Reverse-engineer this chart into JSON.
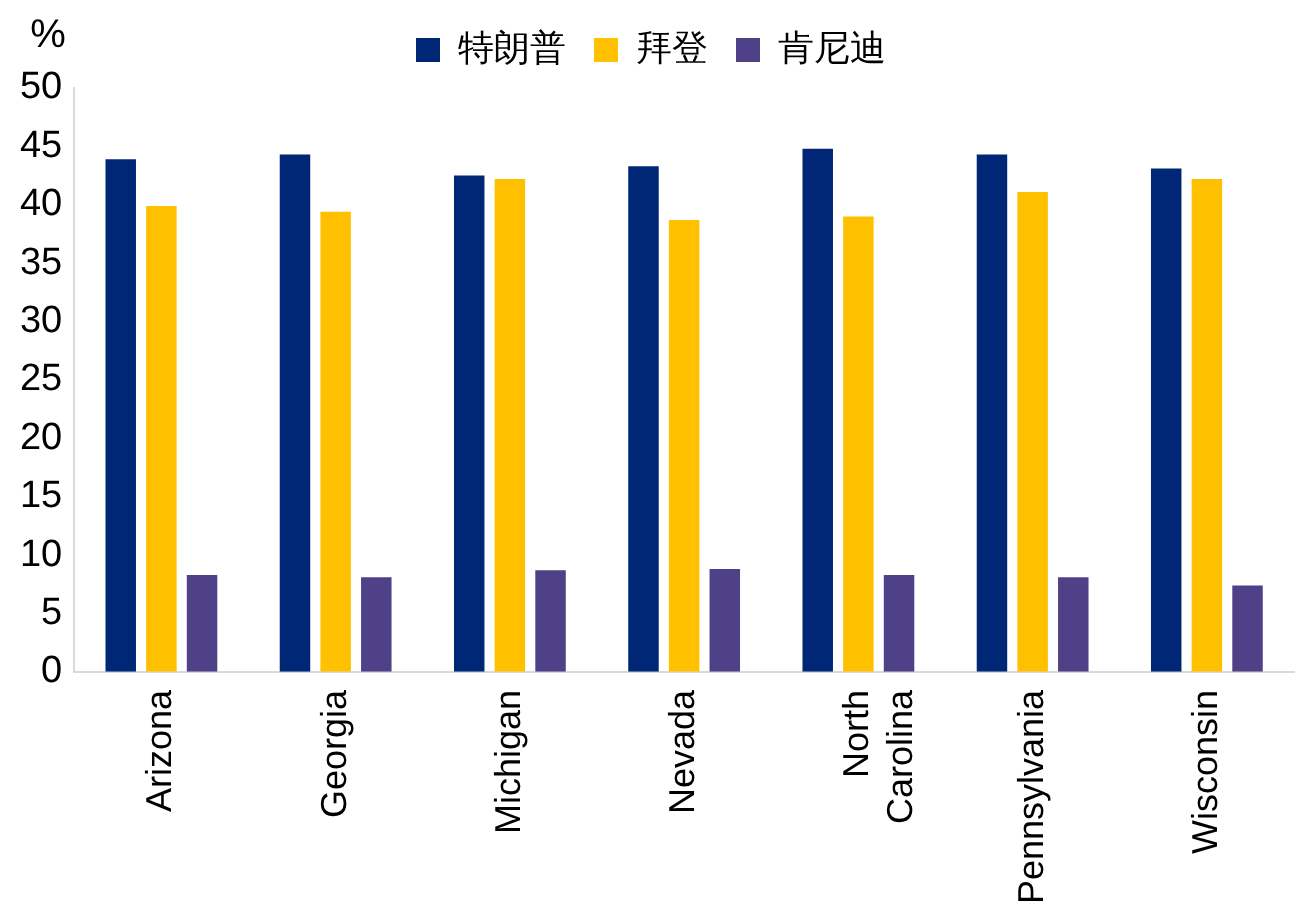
{
  "chart_data": {
    "type": "bar",
    "ylabel": "%",
    "categories": [
      "Arizona",
      "Georgia",
      "Michigan",
      "Nevada",
      "North Carolina",
      "Pennsylvania",
      "Wisconsin"
    ],
    "series": [
      {
        "name": "特朗普",
        "color": "#002776",
        "values": [
          43.9,
          44.3,
          42.5,
          43.3,
          44.8,
          44.3,
          43.1
        ]
      },
      {
        "name": "拜登",
        "color": "#ffc000",
        "values": [
          39.9,
          39.4,
          42.2,
          38.7,
          39.0,
          41.1,
          42.2
        ]
      },
      {
        "name": "肯尼迪",
        "color": "#4f4187",
        "values": [
          8.3,
          8.1,
          8.7,
          8.8,
          8.3,
          8.1,
          7.4
        ]
      }
    ],
    "ylim": [
      0,
      50
    ],
    "yticks": [
      0,
      5,
      10,
      15,
      20,
      25,
      30,
      35,
      40,
      45,
      50
    ],
    "grid": false,
    "legend": "top"
  }
}
